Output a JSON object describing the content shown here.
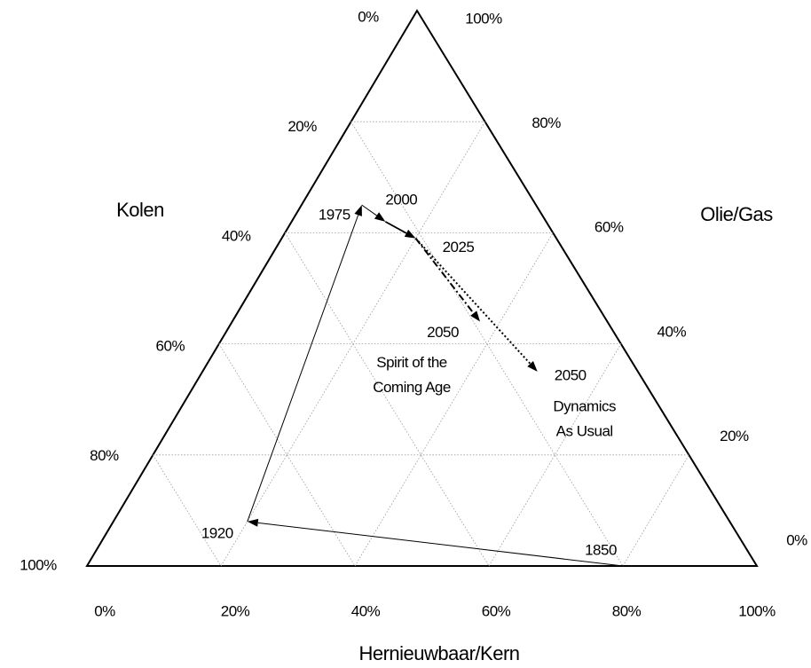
{
  "chart_data": {
    "type": "ternary",
    "axes": {
      "kolen": "Kolen",
      "olie_gas": "Olie/Gas",
      "hernieuwbaar": "Hernieuwbaar/Kern"
    },
    "kolen_ticks": [
      {
        "value": 0,
        "label": "0%"
      },
      {
        "value": 20,
        "label": "20%"
      },
      {
        "value": 40,
        "label": "40%"
      },
      {
        "value": 60,
        "label": "60%"
      },
      {
        "value": 80,
        "label": "80%"
      },
      {
        "value": 100,
        "label": "100%"
      }
    ],
    "olie_gas_ticks": [
      {
        "value": 0,
        "label": "0%"
      },
      {
        "value": 20,
        "label": "20%"
      },
      {
        "value": 40,
        "label": "40%"
      },
      {
        "value": 60,
        "label": "60%"
      },
      {
        "value": 80,
        "label": "80%"
      },
      {
        "value": 100,
        "label": "100%"
      }
    ],
    "hernieuwbaar_ticks": [
      {
        "value": 0,
        "label": "0%"
      },
      {
        "value": 20,
        "label": "20%"
      },
      {
        "value": 40,
        "label": "40%"
      },
      {
        "value": 60,
        "label": "60%"
      },
      {
        "value": 80,
        "label": "80%"
      },
      {
        "value": 100,
        "label": "100%"
      }
    ],
    "grid": true,
    "series": [
      {
        "line_style": "solid",
        "color": "#000000",
        "points": [
          {
            "year": "1850",
            "kolen": 20,
            "olie_gas": 0,
            "hernieuwbaar": 80
          },
          {
            "year": "1920",
            "kolen": 72,
            "olie_gas": 8,
            "hernieuwbaar": 20
          },
          {
            "year": "1975",
            "kolen": 26,
            "olie_gas": 65,
            "hernieuwbaar": 9
          },
          {
            "year": "2000",
            "kolen": 24,
            "olie_gas": 62,
            "hernieuwbaar": 14
          },
          {
            "year": "2025",
            "kolen": 21,
            "olie_gas": 59,
            "hernieuwbaar": 20
          }
        ]
      },
      {
        "line_style": "dashdot",
        "color": "#000000",
        "label": [
          "Spirit of the",
          "Coming Age"
        ],
        "points": [
          {
            "year": "2050",
            "kolen": 19,
            "olie_gas": 44,
            "hernieuwbaar": 37
          }
        ]
      },
      {
        "line_style": "dotted",
        "color": "#000000",
        "label": [
          "Dynamics",
          "As Usual"
        ],
        "points": [
          {
            "year": "2050",
            "kolen": 15,
            "olie_gas": 35,
            "hernieuwbaar": 50
          }
        ]
      }
    ]
  }
}
